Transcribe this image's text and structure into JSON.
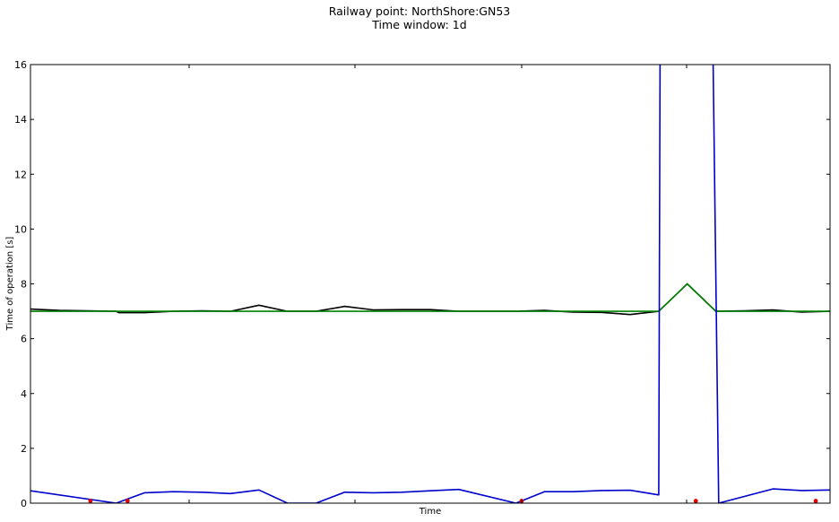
{
  "chart_data": {
    "type": "line",
    "title": "Railway point: NorthShore:GN53",
    "subtitle": "Time window: 1d",
    "xlabel": "Time",
    "ylabel": "Time of operation [s]",
    "ylim": [
      0,
      16
    ],
    "xlim": [
      0,
      28
    ],
    "yticks": [
      0,
      2,
      4,
      6,
      8,
      10,
      12,
      14,
      16
    ],
    "grid": false,
    "colors": {
      "black_series": "#000000",
      "green_series": "#008000",
      "blue_series": "#0000cc",
      "markers": "#e00000"
    },
    "series": [
      {
        "x": [
          0,
          1,
          2,
          3,
          3.1,
          4,
          5,
          6,
          7,
          8,
          9,
          10,
          11,
          12,
          13,
          14,
          15,
          16,
          17,
          18,
          19,
          20,
          21,
          22,
          23,
          24,
          25,
          26,
          27,
          28
        ],
        "values": [
          7.08,
          7.03,
          7.02,
          7.0,
          6.95,
          6.95,
          7.0,
          7.02,
          7.0,
          7.22,
          7.0,
          7.0,
          7.18,
          7.05,
          7.06,
          7.06,
          7.0,
          7.0,
          7.0,
          7.03,
          6.97,
          6.96,
          6.88,
          7.0,
          8.0,
          7.0,
          7.02,
          7.05,
          6.97,
          7.0
        ]
      },
      {
        "x": [
          0,
          22,
          23,
          24,
          25,
          26,
          27,
          28
        ],
        "values": [
          7.0,
          7.0,
          8.0,
          7.0,
          7.0,
          7.0,
          7.0,
          7.0
        ]
      },
      {
        "x": [
          0,
          3,
          4,
          5,
          6,
          7,
          8,
          9,
          10,
          11,
          12,
          13,
          14,
          15,
          17,
          18,
          19,
          20,
          21,
          22,
          22.05,
          23.9,
          24.1,
          26,
          27,
          28
        ],
        "values": [
          0.45,
          0.0,
          0.38,
          0.42,
          0.4,
          0.35,
          0.48,
          0.0,
          0.0,
          0.4,
          0.38,
          0.4,
          0.45,
          0.5,
          0.0,
          0.42,
          0.42,
          0.46,
          0.47,
          0.3,
          16.5,
          16.5,
          0.0,
          0.52,
          0.46,
          0.48
        ]
      }
    ],
    "markers": {
      "x": [
        2.1,
        3.4,
        17.2,
        23.3,
        27.5
      ],
      "values": [
        0.08,
        0.08,
        0.08,
        0.08,
        0.08
      ]
    }
  }
}
